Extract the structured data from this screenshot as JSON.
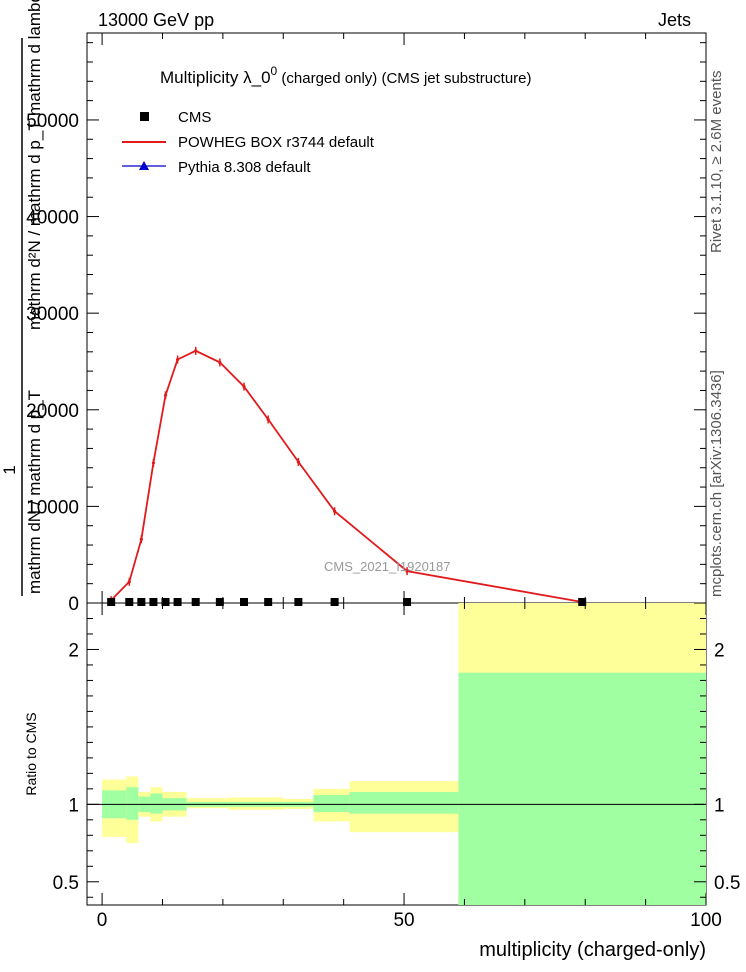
{
  "header": {
    "energy_label": "13000 GeV pp",
    "category_label": "Jets"
  },
  "side_labels": {
    "rivet": "Rivet 3.1.10, ≥ 2.6M events",
    "mcplots": "mcplots.cern.ch [arXiv:1306.3436]"
  },
  "colors": {
    "cms": "#000000",
    "powheg": "#e31a1c",
    "pythia": "#0000cc",
    "band_green": "#a0ffa0",
    "band_yellow": "#ffff9a"
  },
  "chart_data": [
    {
      "type": "line",
      "title": "Multiplicity  λ_0⁰ (charged only) (CMS jet substructure)",
      "title_main": "Multiplicity  λ_0",
      "title_sup": "0",
      "title_tail": " (charged only) (CMS jet substructure)",
      "watermark": "CMS_2021_I1920187",
      "ylabel_numerator": "mathrm d²N",
      "ylabel_denominator": "mathrm d p_T mathrm d lambda",
      "ylabel_prefactor": "1",
      "ylabel_prefactor_denominator": "mathrm dN / mathrm d p_T",
      "ylabel_top": "mathrm d²N / mathrm d p_T mathrm d lambda",
      "ylabel_bottom": "mathrm dN / mathrm d p_T",
      "xlim": [
        -2.5,
        100
      ],
      "ylim": [
        0,
        59000
      ],
      "y_ticks": [
        0,
        10000,
        20000,
        30000,
        40000,
        50000
      ],
      "y_tick_labels": [
        "0",
        "10000",
        "20000",
        "30000",
        "40000",
        "50000"
      ],
      "legend_position": "top-left",
      "series": [
        {
          "name": "CMS",
          "marker": "square",
          "x": [
            1.5,
            4.5,
            6.5,
            8.5,
            10.5,
            12.5,
            15.5,
            19.5,
            23.5,
            27.5,
            32.5,
            38.5,
            50.5,
            79.5
          ],
          "y": [
            0,
            0,
            0,
            0,
            0,
            0,
            0,
            0,
            0,
            0,
            0,
            0,
            0,
            0
          ]
        },
        {
          "name": "POWHEG BOX r3744 default",
          "marker": "line",
          "x": [
            1.5,
            4.5,
            6.5,
            8.5,
            10.5,
            12.5,
            15.5,
            19.5,
            23.5,
            27.5,
            32.5,
            38.5,
            50.5,
            79.5
          ],
          "y": [
            300,
            2200,
            6600,
            14500,
            21500,
            25200,
            26100,
            24900,
            22400,
            19000,
            14600,
            9500,
            3300,
            100
          ]
        },
        {
          "name": "Pythia 8.308 default",
          "marker": "triangle",
          "x": [],
          "y": []
        }
      ]
    },
    {
      "type": "area",
      "ylabel": "Ratio to CMS",
      "xlabel": "multiplicity (charged-only)",
      "xlim": [
        -2.5,
        100
      ],
      "ylim": [
        0.35,
        2.3
      ],
      "y_ticks": [
        0.5,
        1,
        2
      ],
      "y_tick_labels": [
        "0.5",
        "1",
        "2"
      ],
      "x_ticks": [
        0,
        50,
        100
      ],
      "x_tick_labels": [
        "0",
        "50",
        "100"
      ],
      "bins": [
        {
          "lo": 0,
          "hi": 4,
          "green": [
            0.91,
            1.09
          ],
          "yellow": [
            0.79,
            1.16
          ]
        },
        {
          "lo": 4,
          "hi": 6,
          "green": [
            0.9,
            1.11
          ],
          "yellow": [
            0.75,
            1.18
          ]
        },
        {
          "lo": 6,
          "hi": 8,
          "green": [
            0.95,
            1.05
          ],
          "yellow": [
            0.92,
            1.08
          ]
        },
        {
          "lo": 8,
          "hi": 10,
          "green": [
            0.94,
            1.07
          ],
          "yellow": [
            0.89,
            1.11
          ]
        },
        {
          "lo": 10,
          "hi": 14,
          "green": [
            0.96,
            1.04
          ],
          "yellow": [
            0.92,
            1.08
          ]
        },
        {
          "lo": 14,
          "hi": 21,
          "green": [
            0.985,
            1.015
          ],
          "yellow": [
            0.975,
            1.04
          ]
        },
        {
          "lo": 21,
          "hi": 30,
          "green": [
            0.985,
            1.015
          ],
          "yellow": [
            0.965,
            1.045
          ]
        },
        {
          "lo": 30,
          "hi": 35,
          "green": [
            0.985,
            1.015
          ],
          "yellow": [
            0.97,
            1.035
          ]
        },
        {
          "lo": 35,
          "hi": 41,
          "green": [
            0.95,
            1.06
          ],
          "yellow": [
            0.89,
            1.1
          ]
        },
        {
          "lo": 41,
          "hi": 59,
          "green": [
            0.94,
            1.08
          ],
          "yellow": [
            0.82,
            1.15
          ]
        },
        {
          "lo": 59,
          "hi": 100,
          "green": [
            0.35,
            1.85
          ],
          "yellow": [
            0.35,
            2.3
          ]
        }
      ]
    }
  ]
}
